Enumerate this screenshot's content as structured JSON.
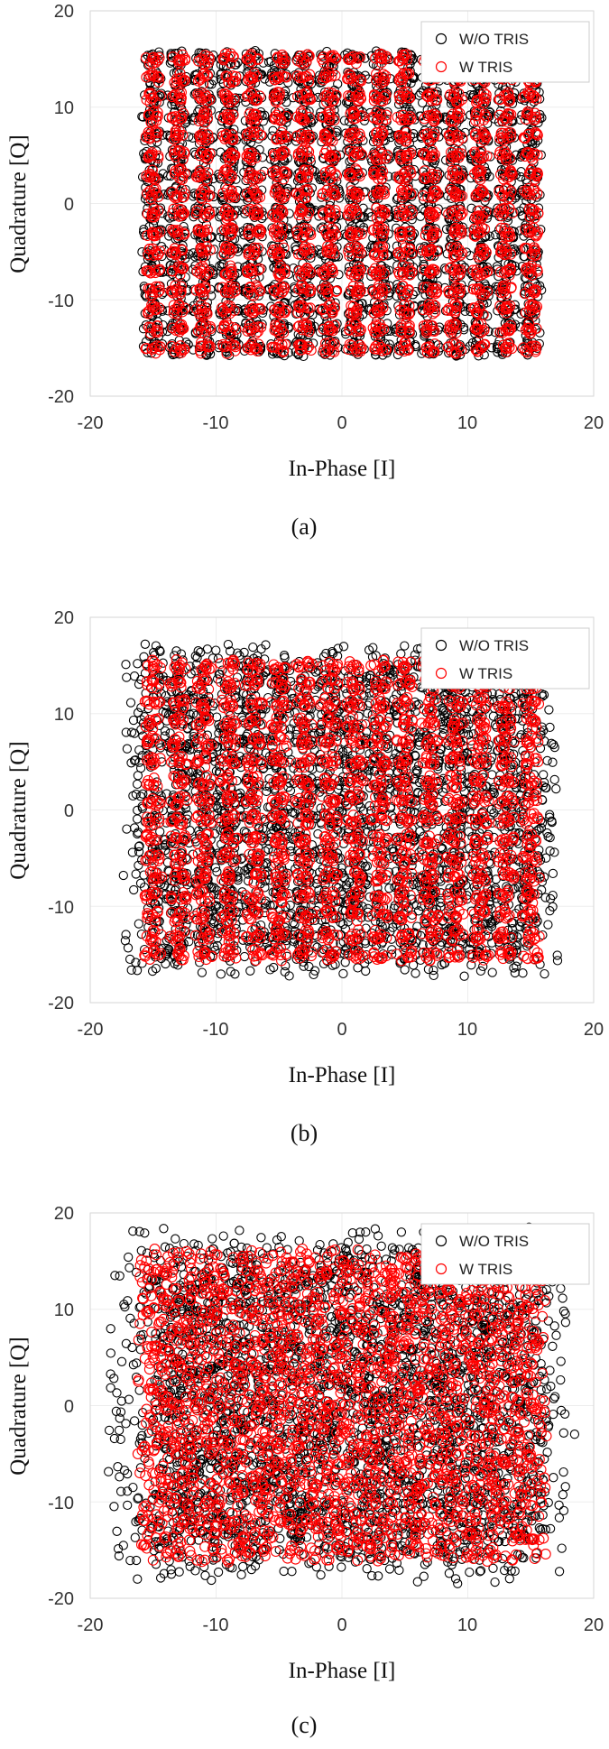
{
  "legend": {
    "without_label": "W/O TRIS",
    "with_label": "W TRIS",
    "without_color": "#000000",
    "with_color": "#ff0000"
  },
  "axes": {
    "xlabel": "In-Phase [I]",
    "ylabel": "Quadrature [Q]",
    "xticks": [
      "-20",
      "-10",
      "0",
      "10",
      "20"
    ],
    "yticks": [
      "20",
      "10",
      "0",
      "-10",
      "-20"
    ]
  },
  "chart_data": [
    {
      "type": "scatter",
      "caption": "(a)",
      "xlabel": "In-Phase [I]",
      "ylabel": "Quadrature [Q]",
      "xlim": [
        -20,
        20
      ],
      "ylim": [
        -20,
        20
      ],
      "grid": true,
      "legend_position": "top-right",
      "constellation_levels": [
        -15,
        -13,
        -11,
        -9,
        -7,
        -5,
        -3,
        -1,
        1,
        3,
        5,
        7,
        9,
        11,
        13,
        15
      ],
      "series": [
        {
          "name": "W/O TRIS",
          "color": "#000000",
          "marker": "circle",
          "spread_radius": 0.9
        },
        {
          "name": "W TRIS",
          "color": "#ff0000",
          "marker": "circle",
          "spread_radius": 0.6
        }
      ]
    },
    {
      "type": "scatter",
      "caption": "(b)",
      "xlabel": "In-Phase [I]",
      "ylabel": "Quadrature [Q]",
      "xlim": [
        -20,
        20
      ],
      "ylim": [
        -20,
        20
      ],
      "grid": true,
      "legend_position": "top-right",
      "constellation_levels": [
        -15,
        -13,
        -11,
        -9,
        -7,
        -5,
        -3,
        -1,
        1,
        3,
        5,
        7,
        9,
        11,
        13,
        15
      ],
      "series": [
        {
          "name": "W/O TRIS",
          "color": "#000000",
          "marker": "circle",
          "spread_radius": 2.4
        },
        {
          "name": "W TRIS",
          "color": "#ff0000",
          "marker": "circle",
          "spread_radius": 0.7
        }
      ]
    },
    {
      "type": "scatter",
      "caption": "(c)",
      "xlabel": "In-Phase [I]",
      "ylabel": "Quadrature [Q]",
      "xlim": [
        -20,
        20
      ],
      "ylim": [
        -20,
        20
      ],
      "grid": true,
      "legend_position": "top-right",
      "constellation_levels": [
        -15,
        -13,
        -11,
        -9,
        -7,
        -5,
        -3,
        -1,
        1,
        3,
        5,
        7,
        9,
        11,
        13,
        15
      ],
      "series": [
        {
          "name": "W/O TRIS",
          "color": "#000000",
          "marker": "circle",
          "spread_radius": 3.6
        },
        {
          "name": "W TRIS",
          "color": "#ff0000",
          "marker": "circle",
          "spread_radius": 1.3
        }
      ]
    }
  ]
}
